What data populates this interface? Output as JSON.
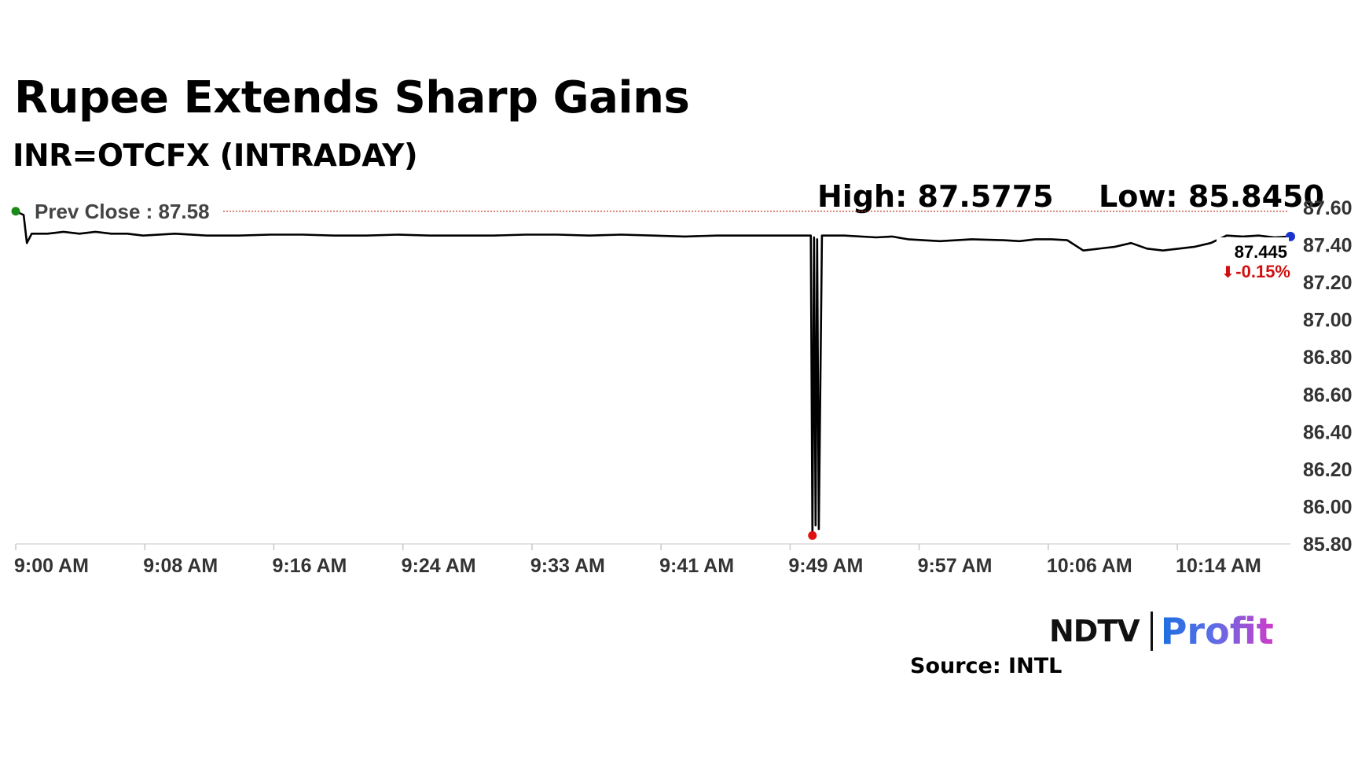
{
  "header": {
    "title": "Rupee Extends Sharp Gains",
    "subtitle": "INR=OTCFX (INTRADAY)"
  },
  "stats": {
    "high": "High: 87.5775",
    "low": "Low: 85.8450"
  },
  "brand": {
    "ndtv": "NDTV",
    "profit": "Profit"
  },
  "footer": {
    "source": "Source: INTL"
  },
  "colors": {
    "line": "#000000",
    "prev_close": "#c0392b",
    "start_dot": "#1a8a1a",
    "low_dot": "#e01010",
    "end_dot": "#1a33cc",
    "change_negative": "#d01010",
    "axis_text": "#333333"
  },
  "chart_data": {
    "type": "line",
    "title": "Rupee Extends Sharp Gains",
    "subtitle": "INR=OTCFX (INTRADAY)",
    "xlabel": "",
    "ylabel": "",
    "x_ticks": [
      "9:00 AM",
      "9:08 AM",
      "9:16 AM",
      "9:24 AM",
      "9:33 AM",
      "9:41 AM",
      "9:49 AM",
      "9:57 AM",
      "10:06 AM",
      "10:14 AM"
    ],
    "y_ticks": [
      "85.80",
      "86.00",
      "86.20",
      "86.40",
      "86.60",
      "86.80",
      "87.00",
      "87.20",
      "87.40",
      "87.60"
    ],
    "ylim": [
      85.8,
      87.6
    ],
    "y_axis_side": "right",
    "grid": false,
    "prev_close": {
      "label": "Prev Close : 87.58",
      "value": 87.58
    },
    "last": {
      "value_label": "87.445",
      "change_label": "-0.15%",
      "value": 87.445
    },
    "series": [
      {
        "x": [
          0.0,
          0.5,
          0.7,
          1.0,
          2.0,
          3.0,
          4.0,
          5.0,
          6.0,
          7.0,
          8.0,
          10.0,
          12.0,
          14.0,
          16.0,
          18.0,
          20.0,
          22.0,
          24.0,
          26.0,
          28.0,
          30.0,
          32.0,
          34.0,
          36.0,
          38.0,
          40.0,
          42.0,
          44.0,
          46.0,
          48.0,
          49.9,
          50.0,
          50.1,
          50.2,
          50.3,
          50.4,
          50.6,
          52.0,
          54.0,
          55.0,
          56.0,
          58.0,
          60.0,
          62.0,
          63.0,
          64.0,
          65.0,
          66.0,
          67.0,
          69.0,
          70.0,
          71.0,
          72.0,
          73.0,
          74.0,
          75.0,
          76.0,
          77.0,
          78.0,
          79.0,
          80.0
        ],
        "y": [
          87.58,
          87.56,
          87.41,
          87.46,
          87.46,
          87.47,
          87.46,
          87.47,
          87.46,
          87.46,
          87.45,
          87.46,
          87.45,
          87.45,
          87.455,
          87.455,
          87.45,
          87.45,
          87.455,
          87.45,
          87.45,
          87.45,
          87.455,
          87.455,
          87.45,
          87.455,
          87.45,
          87.445,
          87.45,
          87.45,
          87.45,
          87.45,
          85.845,
          87.44,
          85.9,
          87.43,
          85.88,
          87.45,
          87.45,
          87.44,
          87.445,
          87.43,
          87.42,
          87.43,
          87.425,
          87.42,
          87.43,
          87.43,
          87.425,
          87.37,
          87.39,
          87.41,
          87.38,
          87.37,
          87.38,
          87.39,
          87.41,
          87.45,
          87.445,
          87.45,
          87.44,
          87.445
        ]
      }
    ],
    "markers": [
      {
        "name": "start",
        "x": 0.0,
        "y": 87.58
      },
      {
        "name": "low",
        "x": 50.0,
        "y": 85.845
      },
      {
        "name": "last",
        "x": 80.0,
        "y": 87.445
      }
    ]
  }
}
